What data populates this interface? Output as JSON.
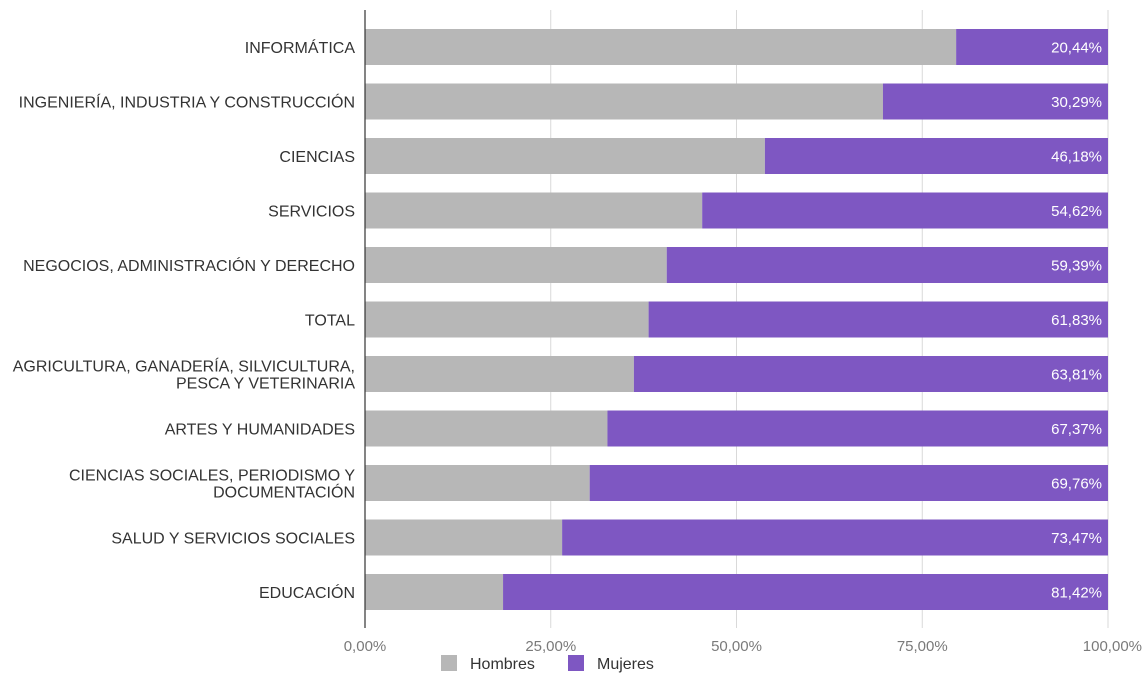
{
  "chart_data": {
    "type": "bar",
    "orientation": "horizontal",
    "stacked": "percent",
    "categories": [
      "INFORMÁTICA",
      "INGENIERÍA, INDUSTRIA Y CONSTRUCCIÓN",
      "CIENCIAS",
      "SERVICIOS",
      "NEGOCIOS, ADMINISTRACIÓN Y DERECHO",
      "TOTAL",
      "AGRICULTURA, GANADERÍA, SILVICULTURA, PESCA Y VETERINARIA",
      "ARTES Y HUMANIDADES",
      "CIENCIAS SOCIALES, PERIODISMO Y DOCUMENTACIÓN",
      "SALUD Y SERVICIOS SOCIALES",
      "EDUCACIÓN"
    ],
    "category_lines": [
      [
        "INFORMÁTICA"
      ],
      [
        "INGENIERÍA, INDUSTRIA Y CONSTRUCCIÓN"
      ],
      [
        "CIENCIAS"
      ],
      [
        "SERVICIOS"
      ],
      [
        "NEGOCIOS, ADMINISTRACIÓN Y DERECHO"
      ],
      [
        "TOTAL"
      ],
      [
        "AGRICULTURA, GANADERÍA, SILVICULTURA,",
        "PESCA Y VETERINARIA"
      ],
      [
        "ARTES Y HUMANIDADES"
      ],
      [
        "CIENCIAS SOCIALES, PERIODISMO Y",
        "DOCUMENTACIÓN"
      ],
      [
        "SALUD Y SERVICIOS SOCIALES"
      ],
      [
        "EDUCACIÓN"
      ]
    ],
    "series": [
      {
        "name": "Hombres",
        "color": "#b7b7b7",
        "values": [
          79.56,
          69.71,
          53.82,
          45.38,
          40.61,
          38.17,
          36.19,
          32.63,
          30.24,
          26.53,
          18.58
        ]
      },
      {
        "name": "Mujeres",
        "color": "#7e57c2",
        "values": [
          20.44,
          30.29,
          46.18,
          54.62,
          59.39,
          61.83,
          63.81,
          67.37,
          69.76,
          73.47,
          81.42
        ],
        "data_labels": [
          "20,44%",
          "30,29%",
          "46,18%",
          "54,62%",
          "59,39%",
          "61,83%",
          "63,81%",
          "67,37%",
          "69,76%",
          "73,47%",
          "81,42%"
        ]
      }
    ],
    "x_ticks": [
      0,
      25,
      50,
      75,
      100
    ],
    "x_tick_labels": [
      "0,00%",
      "25,00%",
      "50,00%",
      "75,00%",
      "100,00%"
    ],
    "xlim": [
      0,
      100
    ],
    "title": "",
    "xlabel": "",
    "ylabel": "",
    "grid": true,
    "legend": {
      "position": "bottom",
      "entries": [
        "Hombres",
        "Mujeres"
      ]
    }
  }
}
